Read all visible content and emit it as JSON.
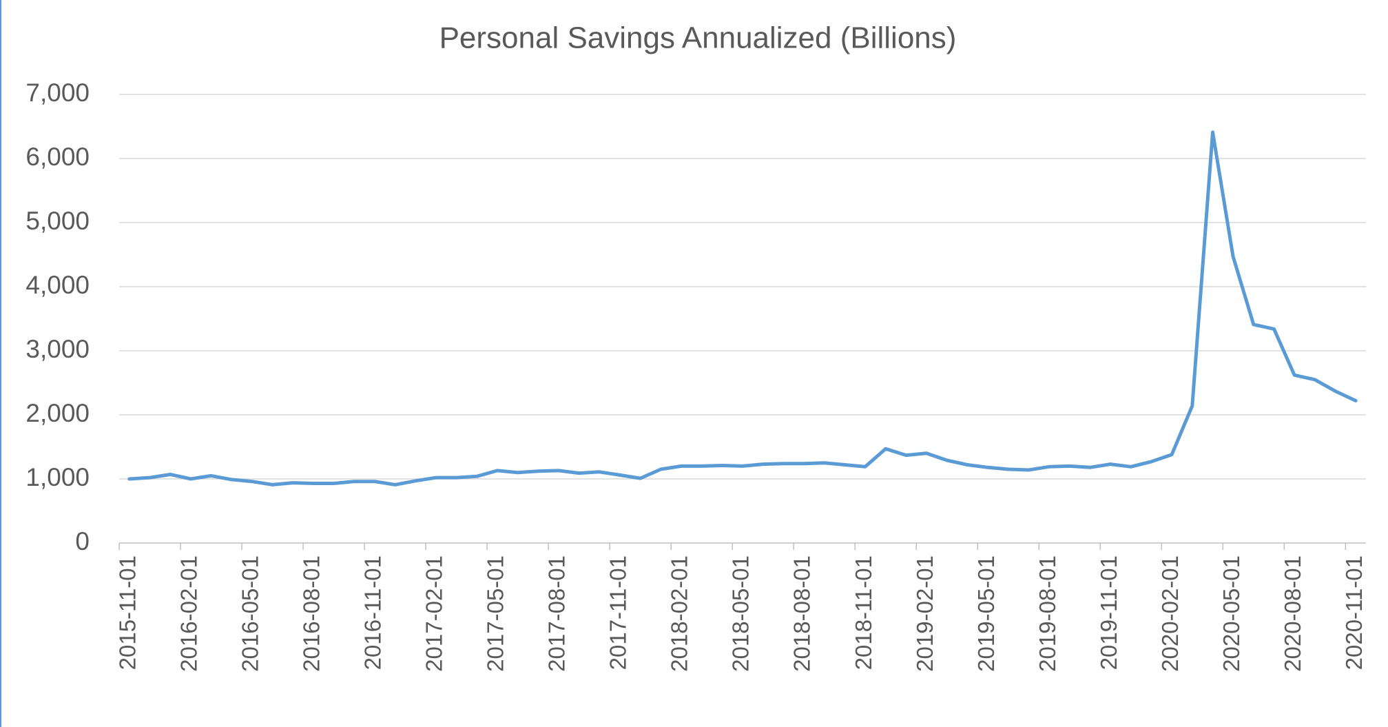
{
  "chart_data": {
    "type": "line",
    "title": "Personal Savings Annualized (Billions)",
    "color": "#5b9bd5",
    "grid": true,
    "ylim": [
      0,
      7000
    ],
    "yticks": [
      0,
      {
        "value": 1000,
        "label": "1,000"
      },
      {
        "value": 2000,
        "label": "2,000"
      },
      {
        "value": 3000,
        "label": "3,000"
      },
      {
        "value": 4000,
        "label": "4,000"
      },
      {
        "value": 5000,
        "label": "5,000"
      },
      {
        "value": 6000,
        "label": "6,000"
      },
      {
        "value": 7000,
        "label": "7,000"
      }
    ],
    "categories": [
      "2015-11-01",
      null,
      null,
      "2016-02-01",
      null,
      null,
      "2016-05-01",
      null,
      null,
      "2016-08-01",
      null,
      null,
      "2016-11-01",
      null,
      null,
      "2017-02-01",
      null,
      null,
      "2017-05-01",
      null,
      null,
      "2017-08-01",
      null,
      null,
      "2017-11-01",
      null,
      null,
      "2018-02-01",
      null,
      null,
      "2018-05-01",
      null,
      null,
      "2018-08-01",
      null,
      null,
      "2018-11-01",
      null,
      null,
      "2019-02-01",
      null,
      null,
      "2019-05-01",
      null,
      null,
      "2019-08-01",
      null,
      null,
      "2019-11-01",
      null,
      null,
      "2020-02-01",
      null,
      null,
      "2020-05-01",
      null,
      null,
      "2020-08-01",
      null,
      null,
      "2020-11-01"
    ],
    "values": [
      1000,
      1020,
      1070,
      1000,
      1050,
      990,
      960,
      910,
      940,
      930,
      930,
      960,
      960,
      910,
      970,
      1020,
      1020,
      1040,
      1130,
      1100,
      1120,
      1130,
      1090,
      1110,
      1060,
      1010,
      1150,
      1200,
      1200,
      1210,
      1200,
      1230,
      1240,
      1240,
      1250,
      1220,
      1190,
      1470,
      1370,
      1400,
      1290,
      1220,
      1180,
      1150,
      1140,
      1190,
      1200,
      1180,
      1230,
      1190,
      1270,
      1380,
      2140,
      6410,
      4470,
      3410,
      3340,
      2620,
      2550,
      2370,
      2220
    ]
  }
}
